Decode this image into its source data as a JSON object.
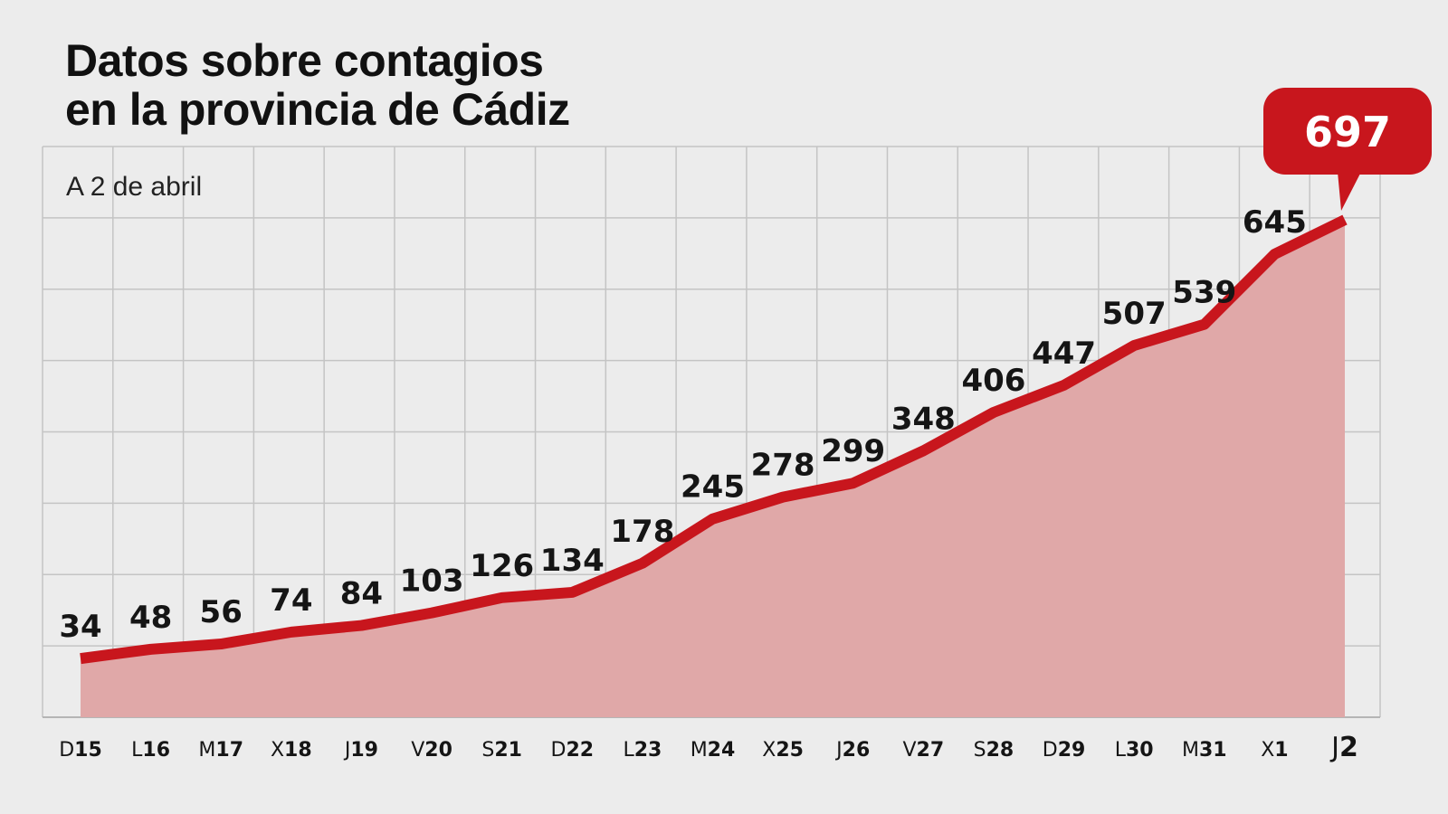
{
  "title": [
    "Datos sobre contagios",
    "en la provincia de Cádiz"
  ],
  "subtitle": "A 2 de abril",
  "colors": {
    "background": "#ececec",
    "line": "#c8161d",
    "area": "#e0a8a8",
    "grid": "#c4c4c4",
    "callout": "#c8161d"
  },
  "chart_data": {
    "type": "area",
    "title": "Datos sobre contagios en la provincia de Cádiz",
    "subtitle": "A 2 de abril",
    "x": [
      {
        "letter": "D",
        "num": "15"
      },
      {
        "letter": "L",
        "num": "16"
      },
      {
        "letter": "M",
        "num": "17"
      },
      {
        "letter": "X",
        "num": "18"
      },
      {
        "letter": "J",
        "num": "19"
      },
      {
        "letter": "V",
        "num": "20"
      },
      {
        "letter": "S",
        "num": "21"
      },
      {
        "letter": "D",
        "num": "22"
      },
      {
        "letter": "L",
        "num": "23"
      },
      {
        "letter": "M",
        "num": "24"
      },
      {
        "letter": "X",
        "num": "25"
      },
      {
        "letter": "J",
        "num": "26"
      },
      {
        "letter": "V",
        "num": "27"
      },
      {
        "letter": "S",
        "num": "28"
      },
      {
        "letter": "D",
        "num": "29"
      },
      {
        "letter": "L",
        "num": "30"
      },
      {
        "letter": "M",
        "num": "31"
      },
      {
        "letter": "X",
        "num": "1"
      },
      {
        "letter": "J",
        "num": "2"
      }
    ],
    "values": [
      34,
      48,
      56,
      74,
      84,
      103,
      126,
      134,
      178,
      245,
      278,
      299,
      348,
      406,
      447,
      507,
      539,
      645,
      697
    ],
    "highlight": {
      "index": 18,
      "label": "697"
    },
    "ylim": [
      0,
      700
    ],
    "grid": true,
    "legend": "none"
  }
}
